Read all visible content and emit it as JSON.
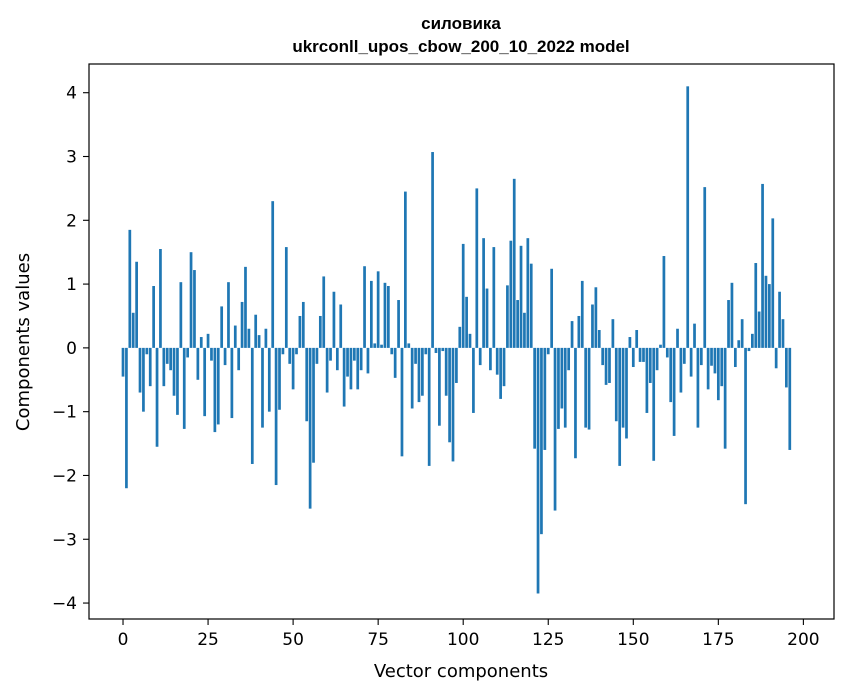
{
  "chart_data": {
    "type": "bar",
    "title": "силовика",
    "subtitle": "ukrconll_upos_cbow_200_10_2022 model",
    "xlabel": "Vector components",
    "ylabel": "Components values",
    "xlim": [
      -10,
      209
    ],
    "ylim": [
      -4.25,
      4.45
    ],
    "xticks": [
      0,
      25,
      50,
      75,
      100,
      125,
      150,
      175,
      200
    ],
    "yticks": [
      -4,
      -3,
      -2,
      -1,
      0,
      1,
      2,
      3,
      4
    ],
    "xtick_labels": [
      "0",
      "25",
      "50",
      "75",
      "100",
      "125",
      "150",
      "175",
      "200"
    ],
    "ytick_labels": [
      "−4",
      "−3",
      "−2",
      "−1",
      "0",
      "1",
      "2",
      "3",
      "4"
    ],
    "bar_color": "#1f77b4",
    "values": [
      -0.45,
      -2.2,
      1.85,
      0.55,
      1.35,
      -0.7,
      -1.0,
      -0.1,
      -0.6,
      0.97,
      -1.55,
      1.55,
      -0.6,
      -0.25,
      -0.35,
      -0.75,
      -1.05,
      1.03,
      -1.27,
      -0.15,
      1.5,
      1.22,
      -0.5,
      0.17,
      -1.07,
      0.22,
      -0.2,
      -1.32,
      -1.2,
      0.65,
      -0.27,
      1.03,
      -1.1,
      0.35,
      -0.35,
      0.72,
      1.27,
      0.3,
      -1.82,
      0.52,
      0.2,
      -1.25,
      0.3,
      -1.0,
      2.3,
      -2.15,
      -0.97,
      -0.1,
      1.58,
      -0.25,
      -0.65,
      -0.1,
      0.5,
      0.72,
      -1.15,
      -2.52,
      -1.8,
      -0.25,
      0.5,
      1.12,
      -0.7,
      -0.2,
      0.88,
      -0.35,
      0.68,
      -0.92,
      -0.45,
      -0.65,
      -0.2,
      -0.65,
      -0.35,
      1.28,
      -0.4,
      1.05,
      0.07,
      1.2,
      0.05,
      1.02,
      0.97,
      -0.1,
      -0.47,
      0.75,
      -1.7,
      2.45,
      0.07,
      -0.95,
      -0.25,
      -0.85,
      -0.75,
      -0.1,
      -1.85,
      3.07,
      -0.08,
      -1.22,
      -0.05,
      -0.75,
      -1.48,
      -1.78,
      -0.55,
      0.33,
      1.63,
      0.8,
      0.22,
      -1.02,
      2.5,
      -0.27,
      1.72,
      0.93,
      -0.35,
      1.58,
      -0.42,
      -0.8,
      -0.6,
      0.98,
      1.68,
      2.65,
      0.75,
      1.6,
      0.55,
      1.72,
      1.32,
      -1.58,
      -3.85,
      -2.92,
      -1.6,
      -0.1,
      1.24,
      -2.55,
      -1.27,
      -0.95,
      -1.25,
      -0.35,
      0.42,
      -1.73,
      0.5,
      1.05,
      -1.25,
      -1.28,
      0.68,
      0.95,
      0.28,
      -0.27,
      -0.58,
      -0.55,
      0.45,
      -1.15,
      -1.85,
      -1.25,
      -1.42,
      0.17,
      -0.3,
      0.28,
      -0.22,
      -0.22,
      -1.02,
      -0.55,
      -1.77,
      -0.35,
      0.05,
      1.44,
      -0.15,
      -0.85,
      -1.38,
      0.3,
      -0.7,
      -0.25,
      4.1,
      -0.45,
      0.38,
      -1.25,
      -0.27,
      2.52,
      -0.65,
      -0.28,
      -0.4,
      -0.82,
      -0.6,
      -1.58,
      0.75,
      1.02,
      -0.3,
      0.12,
      0.45,
      -2.45,
      -0.05,
      0.22,
      1.33,
      0.57,
      2.57,
      1.13,
      1.0,
      2.03,
      -0.32,
      0.88,
      0.45,
      -0.62,
      -1.6
    ]
  }
}
